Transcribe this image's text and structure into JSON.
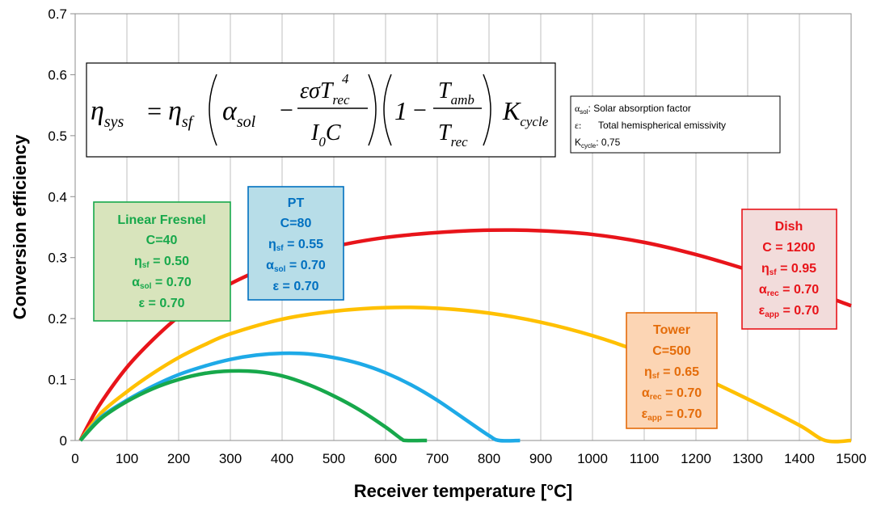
{
  "chart_data": {
    "type": "line",
    "xlabel": "Receiver temperature [°C]",
    "ylabel": "Conversion efficiency",
    "xlim": [
      0,
      1500
    ],
    "ylim": [
      0,
      0.7
    ],
    "x_ticks": [
      "0",
      "100",
      "200",
      "300",
      "400",
      "500",
      "600",
      "700",
      "800",
      "900",
      "1000",
      "1100",
      "1200",
      "1300",
      "1400",
      "1500"
    ],
    "y_ticks": [
      "0",
      "0.1",
      "0.2",
      "0.3",
      "0.4",
      "0.5",
      "0.6",
      "0.7"
    ],
    "grid": "vertical",
    "series": [
      {
        "color": "#E8141A",
        "points": [
          [
            10,
            0
          ],
          [
            25,
            0.025
          ],
          [
            50,
            0.062
          ],
          [
            100,
            0.12
          ],
          [
            150,
            0.165
          ],
          [
            200,
            0.203
          ],
          [
            250,
            0.232
          ],
          [
            300,
            0.257
          ],
          [
            350,
            0.277
          ],
          [
            400,
            0.294
          ],
          [
            500,
            0.318
          ],
          [
            600,
            0.333
          ],
          [
            700,
            0.341
          ],
          [
            800,
            0.345
          ],
          [
            900,
            0.344
          ],
          [
            1000,
            0.338
          ],
          [
            1100,
            0.325
          ],
          [
            1200,
            0.305
          ],
          [
            1300,
            0.28
          ],
          [
            1400,
            0.252
          ],
          [
            1500,
            0.221
          ]
        ]
      },
      {
        "color": "#FFC000",
        "points": [
          [
            10,
            0
          ],
          [
            50,
            0.045
          ],
          [
            100,
            0.08
          ],
          [
            150,
            0.11
          ],
          [
            200,
            0.136
          ],
          [
            250,
            0.157
          ],
          [
            300,
            0.175
          ],
          [
            400,
            0.199
          ],
          [
            500,
            0.212
          ],
          [
            600,
            0.218
          ],
          [
            700,
            0.217
          ],
          [
            800,
            0.209
          ],
          [
            900,
            0.194
          ],
          [
            1000,
            0.172
          ],
          [
            1100,
            0.143
          ],
          [
            1200,
            0.108
          ],
          [
            1300,
            0.068
          ],
          [
            1400,
            0.025
          ],
          [
            1450,
            0
          ],
          [
            1500,
            0
          ]
        ]
      },
      {
        "color": "#1EAAE7",
        "points": [
          [
            10,
            0
          ],
          [
            50,
            0.038
          ],
          [
            100,
            0.066
          ],
          [
            150,
            0.089
          ],
          [
            200,
            0.108
          ],
          [
            250,
            0.122
          ],
          [
            300,
            0.133
          ],
          [
            350,
            0.14
          ],
          [
            400,
            0.143
          ],
          [
            450,
            0.142
          ],
          [
            500,
            0.136
          ],
          [
            550,
            0.126
          ],
          [
            600,
            0.111
          ],
          [
            650,
            0.091
          ],
          [
            700,
            0.066
          ],
          [
            750,
            0.037
          ],
          [
            800,
            0.008
          ],
          [
            820,
            0
          ],
          [
            860,
            0
          ]
        ]
      },
      {
        "color": "#17A84B",
        "points": [
          [
            10,
            0
          ],
          [
            50,
            0.036
          ],
          [
            100,
            0.064
          ],
          [
            150,
            0.085
          ],
          [
            200,
            0.1
          ],
          [
            250,
            0.11
          ],
          [
            300,
            0.114
          ],
          [
            350,
            0.113
          ],
          [
            400,
            0.106
          ],
          [
            450,
            0.092
          ],
          [
            500,
            0.073
          ],
          [
            550,
            0.05
          ],
          [
            600,
            0.022
          ],
          [
            630,
            0.003
          ],
          [
            640,
            0
          ],
          [
            680,
            0
          ]
        ]
      }
    ]
  },
  "formula": {
    "lhs": "η",
    "lhs_sub": "sys",
    "eq": "=",
    "eta": "η",
    "sf_sub": "sf",
    "alpha": "α",
    "sol_sub": "sol",
    "minus": "−",
    "num_eps_sigma_T": "εσT",
    "num_rec_sub": "rec",
    "num_exp": "4",
    "den": "I",
    "den_sub": "0",
    "den_c": "C",
    "one": "1",
    "t_amb": "T",
    "amb_sub": "amb",
    "t_rec": "T",
    "rec_sub": "rec",
    "k": "K",
    "k_sub": "cycle"
  },
  "legend_box": {
    "line1_sym": "α",
    "line1_sub": "sol",
    "line1_text": ":  Solar absorption factor",
    "line2_sym": "ε:",
    "line2_text": "Total hemispherical emissivity",
    "line3_sym": "K",
    "line3_sub": "cycle",
    "line3_text": ": 0,75"
  },
  "annotations": {
    "fresnel": {
      "color": "#17A84B",
      "fill": "#D8E4BC",
      "title": "Linear Fresnel",
      "c": "C=40",
      "eta": "η",
      "eta_sub": "sf",
      "eta_val": " = 0.50",
      "alpha": "α",
      "alpha_sub": "sol",
      "alpha_val": " = 0.70",
      "eps": "ε = 0.70"
    },
    "pt": {
      "color": "#0070C0",
      "fill": "#B7DDE8",
      "title": "PT",
      "c": "C=80",
      "eta": "η",
      "eta_sub": "sf",
      "eta_val": " = 0.55",
      "alpha": "α",
      "alpha_sub": "sol",
      "alpha_val": " = 0.70",
      "eps": "ε = 0.70"
    },
    "tower": {
      "color": "#E46C0A",
      "fill": "#FCD5B4",
      "title": "Tower",
      "c": "C=500",
      "eta": "η",
      "eta_sub": "sf",
      "eta_val": " = 0.65",
      "alpha": "α",
      "alpha_sub": "rec",
      "alpha_val": " = 0.70",
      "eps": "ε",
      "eps_sub": "app",
      "eps_val": " = 0.70"
    },
    "dish": {
      "color": "#E8141A",
      "fill": "#F2DCDB",
      "title": "Dish",
      "c": "C = 1200",
      "eta": "η",
      "eta_sub": "sf",
      "eta_val": " = 0.95",
      "alpha": "α",
      "alpha_sub": "rec",
      "alpha_val": " = 0.70",
      "eps": "ε",
      "eps_sub": "app",
      "eps_val": " = 0.70"
    }
  }
}
